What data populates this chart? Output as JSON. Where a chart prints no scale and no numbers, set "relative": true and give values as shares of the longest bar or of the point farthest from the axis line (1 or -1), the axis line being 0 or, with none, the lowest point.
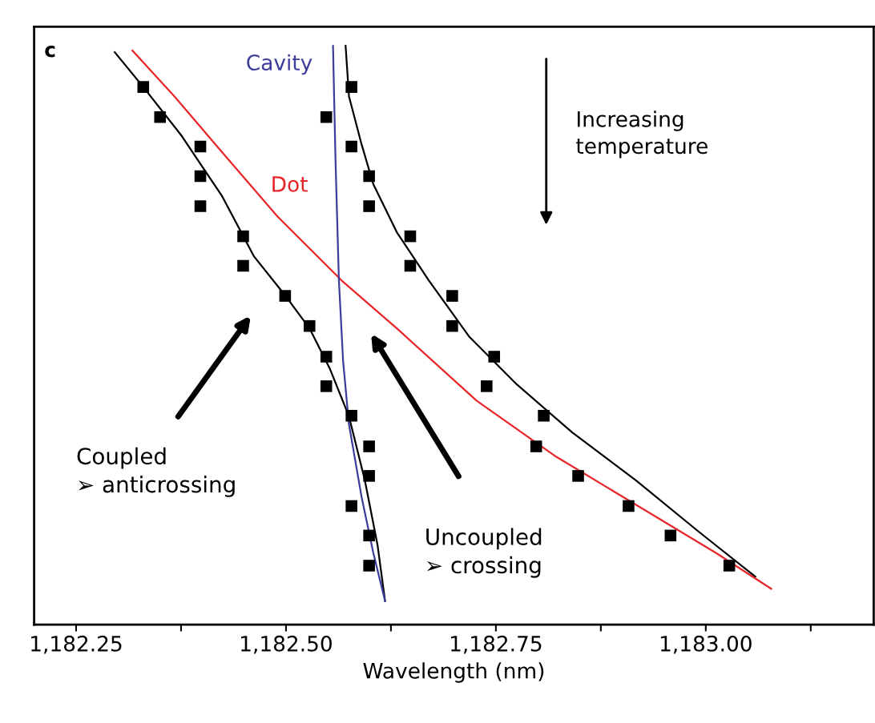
{
  "chart_data": {
    "type": "scatter",
    "relative": true,
    "xlabel": "Wavelength (nm)",
    "xlim": [
      1182.2,
      1183.2
    ],
    "xticks": [
      {
        "value": 1182.25,
        "label": "1,182.25"
      },
      {
        "value": 1182.375,
        "label": null
      },
      {
        "value": 1182.5,
        "label": "1,182.50"
      },
      {
        "value": 1182.625,
        "label": null
      },
      {
        "value": 1182.75,
        "label": "1,182.75"
      },
      {
        "value": 1182.875,
        "label": null
      },
      {
        "value": 1183.0,
        "label": "1,183.00"
      },
      {
        "value": 1183.125,
        "label": null
      }
    ],
    "grid": false,
    "marker": "square",
    "tick_labels": "x",
    "annotations": [
      "c",
      "Increasing\ntemperature",
      "Coupled\n➢ anticrossing",
      "Uncoupled\n➢ crossing"
    ],
    "series": [
      {
        "color": "#000000",
        "x": [
          1182.33,
          1182.578,
          1182.35,
          1182.548,
          1182.398,
          1182.578,
          1182.398,
          1182.599,
          1182.398,
          1182.599,
          1182.449,
          1182.648,
          1182.449,
          1182.648,
          1182.499,
          1182.698,
          1182.528,
          1182.698,
          1182.548,
          1182.748,
          1182.548,
          1182.739,
          1182.578,
          1182.807,
          1182.599,
          1182.798,
          1182.599,
          1182.848,
          1182.578,
          1182.908,
          1182.599,
          1182.958,
          1182.599,
          1183.028
        ],
        "values": [
          0.929,
          0.929,
          0.877,
          0.877,
          0.826,
          0.826,
          0.775,
          0.775,
          0.723,
          0.723,
          0.671,
          0.671,
          0.62,
          0.62,
          0.568,
          0.568,
          0.516,
          0.516,
          0.463,
          0.463,
          0.412,
          0.412,
          0.361,
          0.361,
          0.308,
          0.308,
          0.257,
          0.257,
          0.205,
          0.205,
          0.154,
          0.154,
          0.102,
          0.102
        ]
      },
      {
        "type": "line",
        "color": "#000000",
        "marker": "none",
        "x": [
          1182.296,
          1182.33,
          1182.376,
          1182.424,
          1182.462,
          1182.5,
          1182.528,
          1182.552,
          1182.575,
          1182.594,
          1182.609,
          1182.618
        ],
        "values": [
          0.989,
          0.929,
          0.844,
          0.74,
          0.636,
          0.567,
          0.512,
          0.443,
          0.36,
          0.249,
          0.138,
          0.041
        ]
      },
      {
        "type": "line",
        "color": "#000000",
        "marker": "none",
        "x": [
          1182.571,
          1182.575,
          1182.59,
          1182.604,
          1182.632,
          1182.67,
          1182.718,
          1182.775,
          1182.841,
          1182.917,
          1182.993,
          1183.059
        ],
        "values": [
          1.0,
          0.913,
          0.83,
          0.761,
          0.678,
          0.595,
          0.498,
          0.415,
          0.332,
          0.249,
          0.159,
          0.083
        ]
      },
      {
        "type": "line",
        "name": "Dot",
        "color": "#e8262a",
        "marker": "none",
        "x": [
          1182.317,
          1182.367,
          1182.424,
          1182.49,
          1182.566,
          1182.632,
          1182.727,
          1182.822,
          1182.917,
          1183.012,
          1183.078
        ],
        "values": [
          0.992,
          0.913,
          0.816,
          0.705,
          0.595,
          0.512,
          0.387,
          0.29,
          0.207,
          0.124,
          0.062
        ]
      },
      {
        "type": "line",
        "name": "Cavity",
        "color": "#3c3c9c",
        "marker": "none",
        "x": [
          1182.556,
          1182.559,
          1182.563,
          1182.568,
          1182.575,
          1182.59,
          1182.604,
          1182.618
        ],
        "values": [
          1.0,
          0.802,
          0.595,
          0.456,
          0.346,
          0.221,
          0.124,
          0.041
        ]
      }
    ]
  }
}
